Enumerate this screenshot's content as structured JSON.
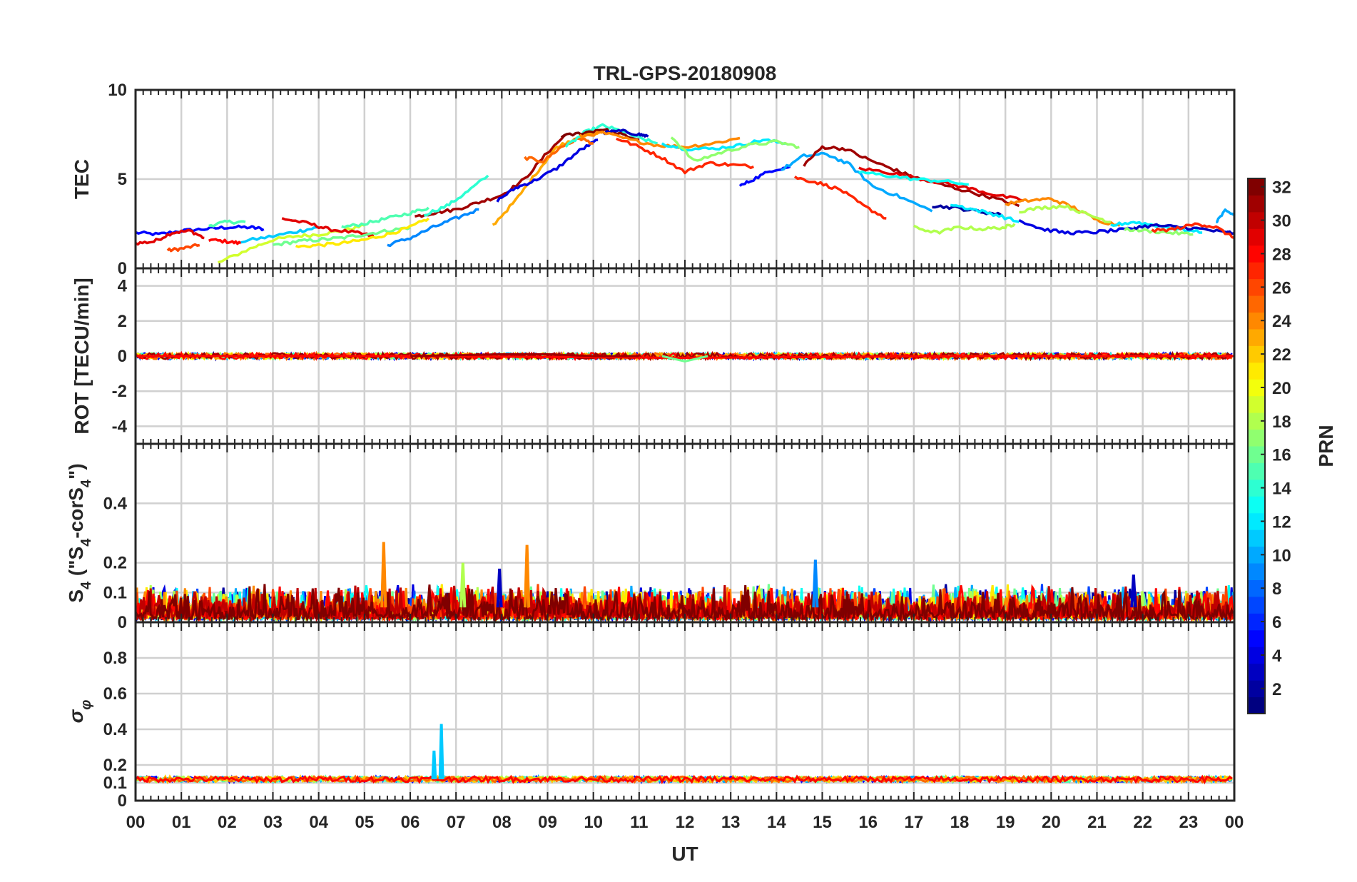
{
  "chart_data": {
    "type": "line",
    "title": "TRL-GPS-20180908",
    "xlabel": "UT",
    "xlim": [
      0,
      24
    ],
    "x_tick_labels": [
      "00",
      "01",
      "02",
      "03",
      "04",
      "05",
      "06",
      "07",
      "08",
      "09",
      "10",
      "11",
      "12",
      "13",
      "14",
      "15",
      "16",
      "17",
      "18",
      "19",
      "20",
      "21",
      "22",
      "23",
      "00"
    ],
    "grid": true,
    "colormap": "jet",
    "colorbar": {
      "label": "PRN",
      "range": [
        1,
        32
      ],
      "tick_labels": [
        "2",
        "4",
        "6",
        "8",
        "10",
        "12",
        "14",
        "16",
        "18",
        "20",
        "22",
        "24",
        "26",
        "28",
        "30",
        "32"
      ],
      "placement": "right"
    },
    "panels": [
      {
        "ylabel": "TEC",
        "ylim": [
          0,
          10
        ],
        "y_tick_labels": [
          "0",
          "5",
          "10"
        ],
        "series": [
          {
            "prn": 5,
            "x": [
              0,
              0.5,
              1,
              1.5,
              2,
              2.5,
              2.8
            ],
            "y": [
              2.0,
              1.9,
              2.1,
              2.2,
              2.3,
              2.3,
              2.2
            ]
          },
          {
            "prn": 29,
            "x": [
              0,
              0.4,
              0.8,
              1.2,
              1.5
            ],
            "y": [
              1.4,
              1.5,
              2.0,
              2.1,
              1.7
            ]
          },
          {
            "prn": 26,
            "x": [
              0.7,
              1.0,
              1.4
            ],
            "y": [
              1.0,
              1.1,
              1.3
            ]
          },
          {
            "prn": 28,
            "x": [
              1.6,
              2.0,
              2.3
            ],
            "y": [
              1.6,
              1.5,
              1.4
            ]
          },
          {
            "prn": 15,
            "x": [
              1.6,
              2.0,
              2.4
            ],
            "y": [
              2.4,
              2.6,
              2.6
            ]
          },
          {
            "prn": 19,
            "x": [
              1.8,
              2.5,
              3.0,
              3.5,
              4.0,
              4.5,
              5.0
            ],
            "y": [
              0.3,
              1.1,
              1.6,
              1.8,
              1.9,
              2.1,
              2.4
            ]
          },
          {
            "prn": 11,
            "x": [
              2.3,
              3.0,
              3.6,
              4.0
            ],
            "y": [
              1.5,
              1.8,
              2.1,
              2.3
            ]
          },
          {
            "prn": 29,
            "x": [
              3.2,
              3.8,
              4.2,
              4.8,
              5.2
            ],
            "y": [
              2.8,
              2.5,
              2.2,
              2.0,
              1.8
            ]
          },
          {
            "prn": 16,
            "x": [
              3.0,
              3.5,
              4.0,
              4.5,
              5.0,
              5.5,
              6.0
            ],
            "y": [
              1.3,
              1.5,
              1.6,
              1.7,
              1.9,
              2.1,
              2.3
            ]
          },
          {
            "prn": 21,
            "x": [
              3.5,
              4.0,
              4.5,
              5.0,
              5.5,
              6.0,
              6.4
            ],
            "y": [
              1.2,
              1.3,
              1.4,
              1.6,
              1.9,
              2.3,
              2.8
            ]
          },
          {
            "prn": 15,
            "x": [
              4.5,
              5.0,
              5.5,
              6.0,
              6.4
            ],
            "y": [
              2.3,
              2.5,
              2.8,
              3.1,
              3.4
            ]
          },
          {
            "prn": 31,
            "x": [
              6.1,
              6.5,
              7.0,
              7.5,
              8.0,
              8.5,
              9.0,
              9.4
            ],
            "y": [
              2.9,
              3.1,
              3.3,
              3.7,
              4.1,
              5.0,
              6.5,
              7.5
            ]
          },
          {
            "prn": 9,
            "x": [
              5.5,
              6.0,
              6.5,
              7.0,
              7.5
            ],
            "y": [
              1.3,
              1.7,
              2.3,
              2.8,
              3.3
            ]
          },
          {
            "prn": 14,
            "x": [
              6.3,
              6.8,
              7.2,
              7.7
            ],
            "y": [
              3.0,
              3.5,
              4.2,
              5.2
            ]
          },
          {
            "prn": 23,
            "x": [
              7.8,
              8.3,
              8.8,
              9.2,
              9.7,
              10.2
            ],
            "y": [
              2.4,
              3.8,
              5.5,
              6.8,
              7.4,
              7.6
            ]
          },
          {
            "prn": 4,
            "x": [
              7.9,
              8.3,
              8.7,
              9.2,
              9.7,
              10.1
            ],
            "y": [
              3.8,
              4.5,
              4.9,
              5.6,
              6.6,
              7.2
            ]
          },
          {
            "prn": 25,
            "x": [
              8.5,
              8.9,
              9.3,
              9.7,
              10.0
            ],
            "y": [
              6.2,
              6.0,
              6.8,
              7.3,
              7.0
            ]
          },
          {
            "prn": 14,
            "x": [
              9.4,
              9.8,
              10.2,
              10.6,
              11.0,
              11.4
            ],
            "y": [
              6.8,
              7.6,
              8.0,
              7.7,
              7.3,
              7.0
            ]
          },
          {
            "prn": 32,
            "x": [
              9.3,
              9.8,
              10.2,
              10.6,
              11.0
            ],
            "y": [
              7.4,
              7.6,
              7.8,
              7.5,
              7.2
            ]
          },
          {
            "prn": 3,
            "x": [
              10.2,
              10.6,
              11.0,
              11.2
            ],
            "y": [
              7.6,
              7.7,
              7.5,
              7.4
            ]
          },
          {
            "prn": 24,
            "x": [
              9.7,
              10.2,
              10.8,
              11.4,
              12.0,
              12.6,
              13.2
            ],
            "y": [
              7.4,
              7.6,
              7.2,
              6.9,
              6.8,
              7.0,
              7.3
            ]
          },
          {
            "prn": 27,
            "x": [
              10.5,
              11.0,
              11.5,
              12.0,
              12.5,
              13.0,
              13.5
            ],
            "y": [
              7.3,
              6.8,
              6.2,
              5.4,
              5.9,
              5.8,
              5.7
            ]
          },
          {
            "prn": 12,
            "x": [
              11.5,
              12.0,
              12.6,
              13.2,
              13.7,
              14.2
            ],
            "y": [
              7.0,
              6.7,
              6.7,
              6.9,
              7.2,
              7.0
            ]
          },
          {
            "prn": 17,
            "x": [
              11.7,
              12.2,
              12.8,
              13.4,
              14.0,
              14.5
            ],
            "y": [
              7.4,
              6.0,
              6.5,
              6.9,
              7.1,
              6.8
            ]
          },
          {
            "prn": 5,
            "x": [
              13.2,
              13.5,
              13.9,
              14.3
            ],
            "y": [
              4.6,
              5.0,
              5.5,
              5.7
            ]
          },
          {
            "prn": 27,
            "x": [
              14.4,
              14.9,
              15.4,
              15.9,
              16.4
            ],
            "y": [
              5.1,
              4.8,
              4.4,
              3.5,
              2.8
            ]
          },
          {
            "prn": 10,
            "x": [
              14.1,
              14.6,
              15.1,
              15.6,
              16.1,
              16.7,
              17.4
            ],
            "y": [
              5.5,
              6.3,
              6.4,
              5.8,
              4.6,
              4.0,
              3.2
            ]
          },
          {
            "prn": 31,
            "x": [
              14.6,
              15.0,
              15.5,
              16.0,
              16.5,
              17.0,
              17.6,
              18.2,
              18.8,
              19.3
            ],
            "y": [
              5.8,
              6.8,
              6.7,
              6.1,
              5.6,
              5.1,
              4.7,
              4.3,
              3.9,
              3.5
            ]
          },
          {
            "prn": 29,
            "x": [
              15.8,
              16.4,
              17.0,
              17.6,
              18.2,
              18.8,
              19.4
            ],
            "y": [
              5.6,
              5.4,
              5.1,
              4.8,
              4.5,
              4.1,
              3.8
            ]
          },
          {
            "prn": 13,
            "x": [
              15.8,
              16.4,
              17.0,
              17.6,
              18.2
            ],
            "y": [
              5.4,
              5.2,
              5.0,
              4.9,
              4.7
            ]
          },
          {
            "prn": 18,
            "x": [
              17.0,
              17.5,
              18.0,
              18.5,
              19.0,
              19.2
            ],
            "y": [
              2.3,
              2.0,
              2.3,
              2.2,
              2.3,
              2.5
            ]
          },
          {
            "prn": 2,
            "x": [
              17.4,
              17.9,
              18.4,
              18.9
            ],
            "y": [
              3.5,
              3.4,
              3.2,
              3.0
            ]
          },
          {
            "prn": 12,
            "x": [
              17.8,
              18.3,
              18.8,
              19.3
            ],
            "y": [
              3.6,
              3.3,
              3.0,
              2.6
            ]
          },
          {
            "prn": 24,
            "x": [
              19.0,
              19.5,
              20.0,
              20.5,
              21.0,
              21.5
            ],
            "y": [
              3.6,
              3.8,
              3.9,
              3.4,
              2.7,
              2.4
            ]
          },
          {
            "prn": 18,
            "x": [
              19.3,
              19.8,
              20.3,
              20.8,
              21.3
            ],
            "y": [
              3.2,
              3.4,
              3.5,
              3.0,
              2.6
            ]
          },
          {
            "prn": 4,
            "x": [
              19.3,
              19.8,
              20.3,
              20.8,
              21.3,
              21.8
            ],
            "y": [
              2.7,
              2.2,
              2.0,
              2.0,
              2.1,
              2.2
            ]
          },
          {
            "prn": 12,
            "x": [
              21.3,
              21.8,
              22.3,
              22.8,
              23.3
            ],
            "y": [
              2.4,
              2.6,
              2.4,
              2.2,
              2.0
            ]
          },
          {
            "prn": 17,
            "x": [
              21.6,
              22.1,
              22.6,
              23.1
            ],
            "y": [
              2.2,
              2.1,
              2.0,
              1.9
            ]
          },
          {
            "prn": 3,
            "x": [
              21.8,
              22.3,
              22.8,
              23.3,
              23.8,
              24.0
            ],
            "y": [
              2.3,
              2.4,
              2.3,
              2.2,
              2.0,
              2.0
            ]
          },
          {
            "prn": 27,
            "x": [
              22.2,
              22.7,
              23.2,
              23.6,
              24.0
            ],
            "y": [
              2.1,
              2.2,
              2.5,
              2.3,
              1.7
            ]
          },
          {
            "prn": 10,
            "x": [
              23.6,
              23.8,
              24.0
            ],
            "y": [
              2.6,
              3.2,
              3.0
            ]
          }
        ]
      },
      {
        "ylabel": "ROT [TECU/min]",
        "ylim": [
          -5,
          5
        ],
        "y_tick_labels": [
          "-4",
          "-2",
          "0",
          "2",
          "4"
        ],
        "series_note_values": "ROT stays near 0 for all PRNs",
        "series": [
          {
            "prn": 28,
            "x": [
              0,
              6,
              12,
              18,
              24
            ],
            "y": [
              0.0,
              0.0,
              -0.1,
              0.0,
              0.0
            ]
          },
          {
            "prn": 31,
            "x": [
              6,
              8,
              9,
              10,
              11
            ],
            "y": [
              0.0,
              0.1,
              0.1,
              0.0,
              0.0
            ]
          },
          {
            "prn": 16,
            "x": [
              11.5,
              12.0,
              12.5
            ],
            "y": [
              0.0,
              -0.3,
              0.0
            ]
          }
        ]
      },
      {
        "ylabel": "S4 (\"S4-corS4\")",
        "ylim": [
          0,
          0.6
        ],
        "y_tick_labels": [
          "0",
          "0.1",
          "0.2",
          "0.4"
        ],
        "peaks": [
          {
            "prn": 24,
            "x": 5.42,
            "y": 0.27
          },
          {
            "prn": 24,
            "x": 8.55,
            "y": 0.26
          },
          {
            "prn": 9,
            "x": 14.85,
            "y": 0.21
          },
          {
            "prn": 18,
            "x": 7.15,
            "y": 0.2
          },
          {
            "prn": 3,
            "x": 7.95,
            "y": 0.18
          },
          {
            "prn": 3,
            "x": 21.8,
            "y": 0.16
          }
        ],
        "baseline_range": [
          0.0,
          0.13
        ]
      },
      {
        "ylabel": "σφ",
        "ylim": [
          0,
          1.0
        ],
        "y_tick_labels": [
          "0",
          "0.1",
          "0.2",
          "0.4",
          "0.6",
          "0.8"
        ],
        "peaks": [
          {
            "prn": 11,
            "x": 6.68,
            "y": 0.43
          },
          {
            "prn": 11,
            "x": 6.52,
            "y": 0.28
          }
        ],
        "baseline_level": 0.12
      }
    ]
  }
}
